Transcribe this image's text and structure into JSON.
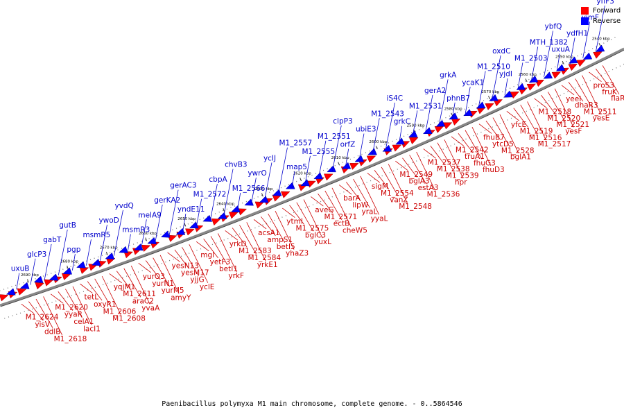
{
  "caption": "Paenibacillus polymyxa M1 main chromosome, complete genome. - 0..5864546",
  "legend": {
    "forward_label": "Forward",
    "reverse_label": "Reverse",
    "forward_color": "#ff0000",
    "reverse_color": "#0000ff"
  },
  "colors": {
    "forward_text": "#cc0000",
    "reverse_text": "#0000cc",
    "backbone": "#888888"
  },
  "ticks": [
    "2690 kbp",
    "2680 kbp",
    "2670 kbp",
    "2660 kbp",
    "2650 kbp",
    "2640 kbp",
    "2630 kbp",
    "2620 kbp",
    "2610 kbp",
    "2600 kbp",
    "2590 kbp",
    "2580 kbp",
    "2570 kbp",
    "2560 kbp",
    "2550 kbp",
    "2540 kbp"
  ],
  "reverse_genes": [
    "uxuB",
    "glcP3",
    "gabT",
    "gutB",
    "pgp",
    "msmR5",
    "ywoD",
    "yvdQ",
    "msmR3",
    "melA9",
    "gerKA2",
    "gerAC3",
    "yndE11",
    "M1_2572",
    "cbpA",
    "chvB3",
    "M1_2566",
    "ywrO",
    "ycIJ",
    "M1_2557",
    "map5",
    "M1_2555",
    "M1_2551",
    "clpP3",
    "orfZ",
    "ubiE3",
    "M1_2543",
    "iS4C",
    "grkC",
    "M1_2531",
    "gerA2",
    "grkA",
    "phnB7",
    "ycaK1",
    "M1_2510",
    "oxdC",
    "yjdI",
    "M1_2503",
    "MTH_1382",
    "ybfQ",
    "uxuA",
    "ydfH1",
    "yjmF",
    "yfiF3"
  ],
  "forward_genes": [
    "M1_2624",
    "yisV",
    "ddlB",
    "M1_2618",
    "M1_2620",
    "yyaR",
    "celA1",
    "lacI1",
    "tetL",
    "oxyR1",
    "M1_2606",
    "M1_2608",
    "yqjM1",
    "M1_2611",
    "araC2",
    "yvaA",
    "yurO3",
    "yurN1",
    "yurM5",
    "amyY",
    "yesN13",
    "yesM17",
    "yjjG",
    "yclE",
    "mgl",
    "yetF3",
    "betI1",
    "yrkF",
    "yrkD",
    "M1_2583",
    "M1_2584",
    "yrkE1",
    "acsA1",
    "ampS1",
    "betI5",
    "yhaZ3",
    "ytmI",
    "M1_2575",
    "bglC3",
    "yuxL",
    "aveG",
    "M1_2571",
    "ectB",
    "cheW5",
    "barA",
    "lipW",
    "yraL",
    "yyaL",
    "sigM",
    "M1_2554",
    "vanZ",
    "M1_2548",
    "M1_2549",
    "bglA3",
    "estA3",
    "M1_2536",
    "M1_2537",
    "M1_2538",
    "M1_2539",
    "hpr",
    "M1_2542",
    "truA1",
    "fhuG3",
    "fhuD3",
    "fhuB7",
    "ytcD5",
    "M1_2528",
    "bglA1",
    "yfcE",
    "M1_2519",
    "M1_2516",
    "M1_2517",
    "M1_2518",
    "M1_2520",
    "M1_2521",
    "yesF",
    "yeeI",
    "dhaR3",
    "M1_2511",
    "yesE",
    "proS3",
    "fruK",
    "flaR"
  ]
}
